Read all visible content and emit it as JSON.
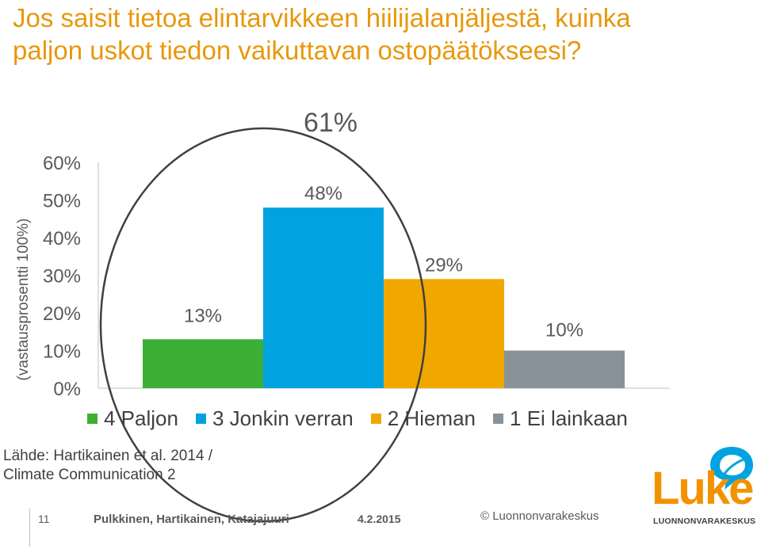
{
  "title_line1": "Jos saisit tietoa elintarvikkeen hiilijalanjäljestä, kuinka",
  "title_line2": "paljon uskot tiedon vaikuttavan ostopäätökseesi?",
  "source_line1": "Lähde: Hartikainen et al. 2014 /",
  "source_line2": "Climate Communication 2",
  "footer": {
    "slide_number": "11",
    "authors": "Pulkkinen, Hartikainen, Katajajuuri",
    "date": "4.2.2015",
    "copyright": "© Luonnonvarakeskus"
  },
  "logo": {
    "word": "Luke",
    "subtitle": "LUONNONVARAKESKUS"
  },
  "colors": {
    "title": "#e8980c",
    "circle": "#404040"
  },
  "chart_data": {
    "type": "bar",
    "ylabel": "(vastausprosentti 100%)",
    "ylim": [
      0,
      60
    ],
    "yticks": [
      0,
      10,
      20,
      30,
      40,
      50,
      60
    ],
    "ytick_labels": [
      "0%",
      "10%",
      "20%",
      "30%",
      "40%",
      "50%",
      "60%"
    ],
    "categories": [
      "4 Paljon",
      "3 Jonkin verran",
      "2 Hieman",
      "1 Ei lainkaan"
    ],
    "values": [
      13,
      48,
      29,
      10
    ],
    "value_labels": [
      "13%",
      "48%",
      "29%",
      "10%"
    ],
    "colors": [
      "#3cb034",
      "#00a3e0",
      "#f0a800",
      "#8a9299"
    ],
    "annotation": "61%",
    "annotation_note": "circle encloses 4 Paljon and 3 Jonkin verran",
    "legend_position": "bottom",
    "grid": false
  }
}
